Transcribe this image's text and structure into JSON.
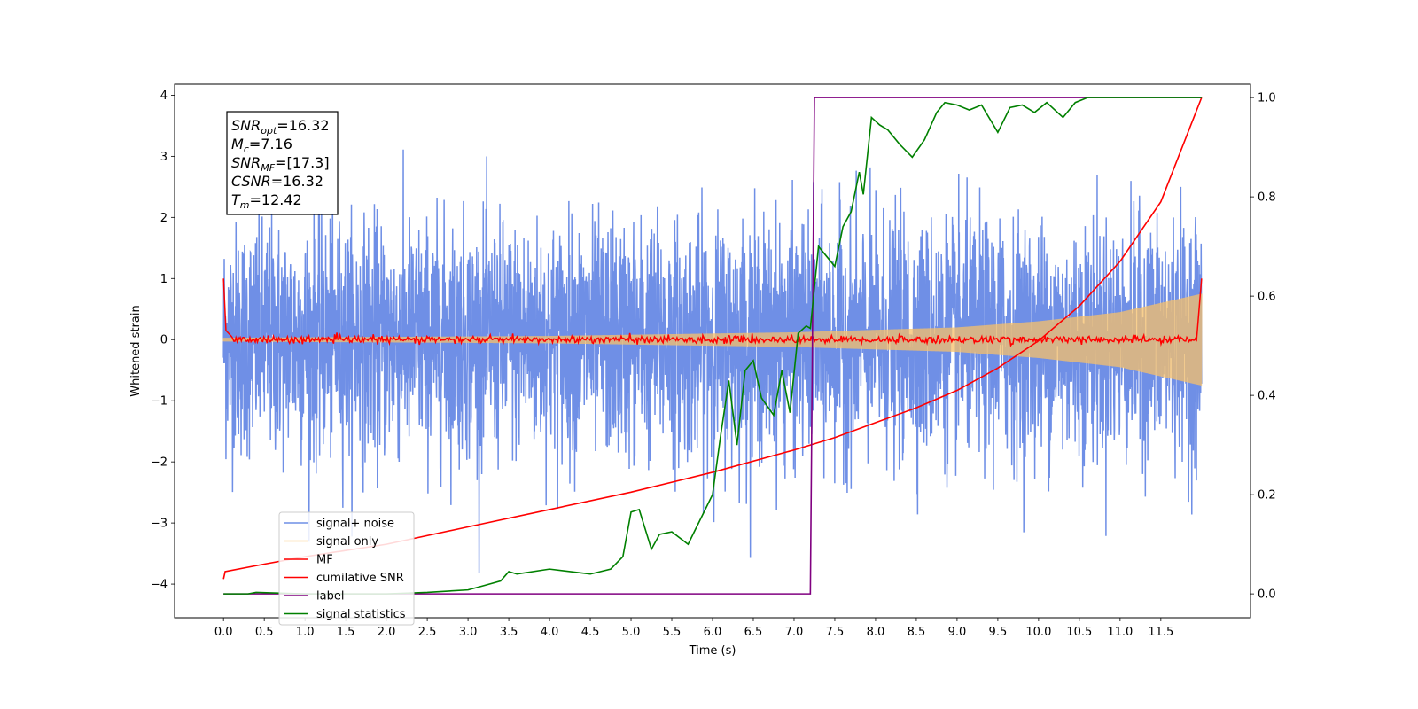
{
  "chart_data": {
    "type": "line",
    "xlabel": "Time (s)",
    "ylabel": "Whitened strain",
    "xlim": [
      -0.6,
      12.6
    ],
    "ylim": [
      -4.55,
      4.18
    ],
    "y2lim": [
      -0.048,
      1.027
    ],
    "x_ticks": [
      "0.0",
      "0.5",
      "1.0",
      "1.5",
      "2.0",
      "2.5",
      "3.0",
      "3.5",
      "4.0",
      "4.5",
      "5.0",
      "5.5",
      "6.0",
      "6.5",
      "7.0",
      "7.5",
      "8.0",
      "8.5",
      "9.0",
      "9.5",
      "10.0",
      "10.5",
      "11.0",
      "11.5"
    ],
    "y_ticks": [
      "4",
      "3",
      "2",
      "1",
      "0",
      "−1",
      "−2",
      "−3",
      "−4"
    ],
    "y2_ticks": [
      "1.0",
      "0.8",
      "0.6",
      "0.4",
      "0.2",
      "0.0"
    ],
    "legend_position": "lower-left",
    "grid": false,
    "annotation": {
      "lines": [
        {
          "sym": "SNR",
          "sub": "opt",
          "value": "=16.32"
        },
        {
          "sym": "M",
          "sub": "c",
          "value": "=7.16"
        },
        {
          "sym": "SNR",
          "sub": "MF",
          "value": "=[17.3]"
        },
        {
          "sym": "CSNR",
          "sub": "",
          "value": "=16.32"
        },
        {
          "sym": "T",
          "sub": "m",
          "value": "=12.42"
        }
      ]
    },
    "series": [
      {
        "name": "signal+ noise",
        "color": "#6f8fe6",
        "axis": "left",
        "kind": "noise_envelope",
        "x_range": [
          0.0,
          12.0
        ],
        "approx_envelope_upper": [
          2.8,
          3.3,
          2.6
        ],
        "approx_envelope_lower": [
          -2.8,
          -4.0,
          -2.6
        ]
      },
      {
        "name": "signal only",
        "color": "#f7c06a",
        "axis": "left",
        "kind": "chirp",
        "x_range": [
          0.0,
          12.0
        ],
        "amplitude": [
          [
            0.0,
            0.03
          ],
          [
            4.0,
            0.06
          ],
          [
            7.0,
            0.12
          ],
          [
            9.0,
            0.2
          ],
          [
            10.0,
            0.3
          ],
          [
            11.0,
            0.45
          ],
          [
            12.0,
            0.75
          ]
        ]
      },
      {
        "name": "MF",
        "color": "#ff0000",
        "axis": "left",
        "kind": "filter_noise",
        "points": [
          [
            0.0,
            1.0
          ],
          [
            0.03,
            0.15
          ],
          [
            0.1,
            0.05
          ],
          [
            6.0,
            0.0
          ],
          [
            11.95,
            0.0
          ],
          [
            12.0,
            1.0
          ]
        ]
      },
      {
        "name": "cumilative SNR",
        "color": "#ff0000",
        "axis": "right",
        "points": [
          [
            0.0,
            0.03
          ],
          [
            0.02,
            0.045
          ],
          [
            0.5,
            0.06
          ],
          [
            1.0,
            0.075
          ],
          [
            2.0,
            0.1
          ],
          [
            3.0,
            0.135
          ],
          [
            4.0,
            0.17
          ],
          [
            5.0,
            0.205
          ],
          [
            6.0,
            0.245
          ],
          [
            7.0,
            0.29
          ],
          [
            7.5,
            0.315
          ],
          [
            8.0,
            0.345
          ],
          [
            8.5,
            0.375
          ],
          [
            9.0,
            0.41
          ],
          [
            9.5,
            0.455
          ],
          [
            10.0,
            0.51
          ],
          [
            10.5,
            0.58
          ],
          [
            11.0,
            0.67
          ],
          [
            11.5,
            0.79
          ],
          [
            12.0,
            1.0
          ]
        ]
      },
      {
        "name": "label",
        "color": "#800080",
        "axis": "right",
        "points": [
          [
            0.0,
            0.0
          ],
          [
            7.2,
            0.0
          ],
          [
            7.25,
            1.0
          ],
          [
            12.0,
            1.0
          ]
        ]
      },
      {
        "name": "signal statistics",
        "color": "#008000",
        "axis": "right",
        "points": [
          [
            0.0,
            0.0
          ],
          [
            0.3,
            0.0
          ],
          [
            0.4,
            0.003
          ],
          [
            1.0,
            0.0
          ],
          [
            2.0,
            0.0
          ],
          [
            2.5,
            0.003
          ],
          [
            3.0,
            0.008
          ],
          [
            3.2,
            0.017
          ],
          [
            3.4,
            0.026
          ],
          [
            3.5,
            0.045
          ],
          [
            3.6,
            0.04
          ],
          [
            4.0,
            0.05
          ],
          [
            4.5,
            0.04
          ],
          [
            4.75,
            0.05
          ],
          [
            4.9,
            0.075
          ],
          [
            5.0,
            0.165
          ],
          [
            5.1,
            0.17
          ],
          [
            5.25,
            0.09
          ],
          [
            5.35,
            0.12
          ],
          [
            5.5,
            0.125
          ],
          [
            5.7,
            0.1
          ],
          [
            6.0,
            0.2
          ],
          [
            6.1,
            0.32
          ],
          [
            6.2,
            0.43
          ],
          [
            6.3,
            0.3
          ],
          [
            6.4,
            0.45
          ],
          [
            6.5,
            0.47
          ],
          [
            6.6,
            0.395
          ],
          [
            6.75,
            0.36
          ],
          [
            6.85,
            0.45
          ],
          [
            6.95,
            0.365
          ],
          [
            7.05,
            0.525
          ],
          [
            7.15,
            0.54
          ],
          [
            7.2,
            0.535
          ],
          [
            7.3,
            0.7
          ],
          [
            7.4,
            0.68
          ],
          [
            7.5,
            0.66
          ],
          [
            7.6,
            0.74
          ],
          [
            7.7,
            0.77
          ],
          [
            7.8,
            0.85
          ],
          [
            7.85,
            0.805
          ],
          [
            7.95,
            0.96
          ],
          [
            8.05,
            0.945
          ],
          [
            8.15,
            0.935
          ],
          [
            8.3,
            0.905
          ],
          [
            8.45,
            0.88
          ],
          [
            8.6,
            0.915
          ],
          [
            8.75,
            0.97
          ],
          [
            8.85,
            0.99
          ],
          [
            9.0,
            0.985
          ],
          [
            9.15,
            0.975
          ],
          [
            9.3,
            0.985
          ],
          [
            9.5,
            0.93
          ],
          [
            9.65,
            0.98
          ],
          [
            9.8,
            0.985
          ],
          [
            9.95,
            0.97
          ],
          [
            10.1,
            0.99
          ],
          [
            10.3,
            0.96
          ],
          [
            10.45,
            0.99
          ],
          [
            10.6,
            1.0
          ],
          [
            11.0,
            1.0
          ],
          [
            11.5,
            1.0
          ],
          [
            12.0,
            1.0
          ]
        ]
      }
    ]
  }
}
